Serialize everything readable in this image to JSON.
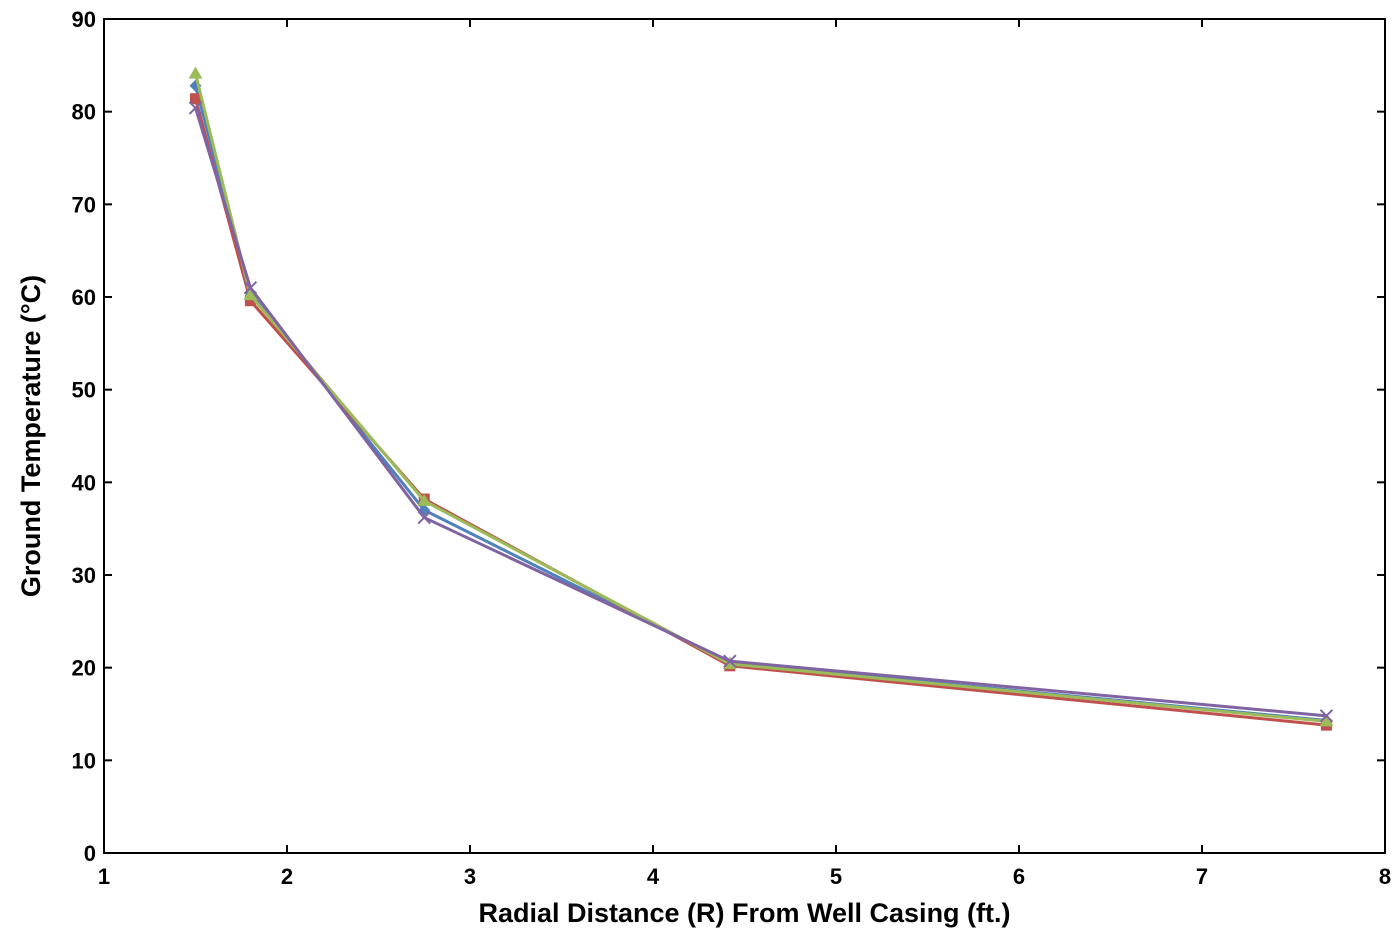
{
  "chart_data": {
    "type": "line",
    "title": "",
    "xlabel": "Radial Distance (R) From Well Casing (ft.)",
    "ylabel": "Ground Temperature (°C)",
    "xlim": [
      1,
      8
    ],
    "ylim": [
      0,
      90
    ],
    "xticks": [
      "1",
      "2",
      "3",
      "4",
      "5",
      "6",
      "7",
      "8"
    ],
    "yticks": [
      "0",
      "10",
      "20",
      "30",
      "40",
      "50",
      "60",
      "70",
      "80",
      "90"
    ],
    "grid": false,
    "legend": "none",
    "x": [
      1.5,
      1.8,
      2.75,
      4.42,
      7.68
    ],
    "series": [
      {
        "color": "#4f81bd",
        "marker": "diamond",
        "values": [
          82.8,
          60.4,
          37.0,
          20.5,
          14.3
        ]
      },
      {
        "color": "#c0504d",
        "marker": "square",
        "values": [
          81.4,
          59.6,
          38.2,
          20.2,
          13.8
        ]
      },
      {
        "color": "#9bbb59",
        "marker": "triangle",
        "values": [
          84.1,
          60.2,
          38.0,
          20.4,
          14.2
        ]
      },
      {
        "color": "#8064a2",
        "marker": "x",
        "values": [
          80.4,
          61.0,
          36.2,
          20.7,
          14.8
        ]
      }
    ]
  }
}
